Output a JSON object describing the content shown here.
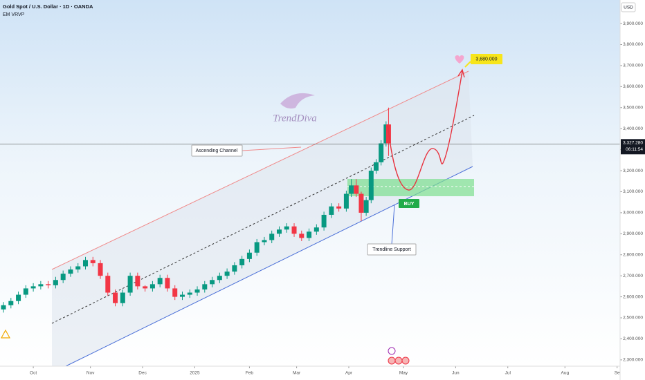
{
  "chart_data": {
    "type": "candlestick",
    "title": "Gold Spot / U.S. Dollar · 1D · OANDA",
    "indicator": "EM VRVP",
    "currency": "USD",
    "watermark": "TrendDiva",
    "x": [
      -12,
      -9,
      -6,
      -3,
      0,
      3,
      6,
      9,
      12,
      15,
      18,
      21,
      24,
      27,
      30,
      33,
      36,
      39,
      42,
      45,
      48,
      51,
      54,
      57,
      60,
      63,
      66,
      69,
      72,
      75,
      78,
      81,
      84,
      87,
      90,
      93,
      96,
      99,
      102,
      105,
      108,
      111,
      114,
      117,
      120,
      123,
      126,
      128,
      130,
      132,
      134,
      136,
      138,
      140,
      142,
      143
    ],
    "open": [
      2540,
      2560,
      2580,
      2610,
      2640,
      2650,
      2660,
      2655,
      2680,
      2710,
      2730,
      2745,
      2775,
      2760,
      2700,
      2620,
      2570,
      2620,
      2700,
      2650,
      2640,
      2660,
      2690,
      2640,
      2600,
      2610,
      2620,
      2635,
      2660,
      2680,
      2700,
      2720,
      2750,
      2780,
      2810,
      2860,
      2870,
      2900,
      2920,
      2935,
      2900,
      2880,
      2910,
      2930,
      2990,
      3030,
      3020,
      3090,
      3130,
      3090,
      3000,
      3060,
      3200,
      3240,
      3330,
      3420
    ],
    "high": [
      2575,
      2595,
      2625,
      2655,
      2665,
      2675,
      2675,
      2695,
      2725,
      2745,
      2760,
      2790,
      2790,
      2775,
      2715,
      2635,
      2635,
      2715,
      2715,
      2655,
      2675,
      2705,
      2705,
      2655,
      2625,
      2635,
      2650,
      2675,
      2695,
      2715,
      2735,
      2765,
      2795,
      2825,
      2875,
      2885,
      2915,
      2935,
      2950,
      2950,
      2915,
      2925,
      2945,
      3005,
      3045,
      3045,
      3105,
      3160,
      3160,
      3100,
      3075,
      3215,
      3255,
      3345,
      3435,
      3500
    ],
    "low": [
      2525,
      2545,
      2565,
      2595,
      2625,
      2635,
      2640,
      2640,
      2665,
      2695,
      2715,
      2730,
      2745,
      2685,
      2605,
      2555,
      2555,
      2605,
      2635,
      2625,
      2625,
      2645,
      2625,
      2585,
      2585,
      2595,
      2605,
      2620,
      2645,
      2665,
      2685,
      2705,
      2735,
      2765,
      2795,
      2845,
      2855,
      2885,
      2905,
      2885,
      2865,
      2865,
      2895,
      2915,
      2975,
      3005,
      3005,
      3075,
      3075,
      2960,
      2985,
      3045,
      3185,
      3225,
      3315,
      3270
    ],
    "close": [
      2560,
      2580,
      2610,
      2640,
      2650,
      2660,
      2655,
      2680,
      2710,
      2730,
      2745,
      2775,
      2760,
      2700,
      2620,
      2570,
      2620,
      2700,
      2650,
      2640,
      2660,
      2690,
      2640,
      2600,
      2610,
      2620,
      2635,
      2660,
      2680,
      2700,
      2720,
      2750,
      2780,
      2810,
      2860,
      2870,
      2900,
      2920,
      2935,
      2900,
      2880,
      2910,
      2930,
      2990,
      3030,
      3020,
      3090,
      3130,
      3090,
      3000,
      3060,
      3200,
      3240,
      3330,
      3420,
      3330
    ],
    "up_color": "#089981",
    "down_color": "#f23645",
    "xlim": [
      -13.4,
      236.2
    ],
    "xticks": [
      {
        "value": 0,
        "label": "Oct"
      },
      {
        "value": 23,
        "label": "Nov"
      },
      {
        "value": 44,
        "label": "Dec"
      },
      {
        "value": 65,
        "label": "2025"
      },
      {
        "value": 87,
        "label": "Feb"
      },
      {
        "value": 106,
        "label": "Mar"
      },
      {
        "value": 127,
        "label": "Apr"
      },
      {
        "value": 149,
        "label": "May"
      },
      {
        "value": 170,
        "label": "Jun"
      },
      {
        "value": 191,
        "label": "Jul"
      },
      {
        "value": 214,
        "label": "Aug"
      },
      {
        "value": 235,
        "label": "Se"
      }
    ],
    "ylim": [
      2270,
      4012
    ],
    "yticks": [
      {
        "value": 2300,
        "label": "2,300.000"
      },
      {
        "value": 2400,
        "label": "2,400.000"
      },
      {
        "value": 2500,
        "label": "2,500.000"
      },
      {
        "value": 2600,
        "label": "2,600.000"
      },
      {
        "value": 2700,
        "label": "2,700.000"
      },
      {
        "value": 2800,
        "label": "2,800.000"
      },
      {
        "value": 2900,
        "label": "2,900.000"
      },
      {
        "value": 3000,
        "label": "3,000.000"
      },
      {
        "value": 3100,
        "label": "3,100.000"
      },
      {
        "value": 3200,
        "label": "3,200.000"
      },
      {
        "value": 3300,
        "label": "3,300.000"
      },
      {
        "value": 3400,
        "label": "3,400.000"
      },
      {
        "value": 3500,
        "label": "3,500.000"
      },
      {
        "value": 3600,
        "label": "3,600.000"
      },
      {
        "value": 3700,
        "label": "3,700.000"
      },
      {
        "value": 3800,
        "label": "3,800.000"
      },
      {
        "value": 3900,
        "label": "3,900.000"
      }
    ],
    "current_price": {
      "value": 3327.28,
      "label": "3,327.280"
    },
    "countdown": "06:11:54",
    "target": {
      "value": 3680,
      "label": "3,680.000"
    },
    "annotations": {
      "channel": "Ascending Channel",
      "support": "Trendline Support",
      "signal": "BUY"
    }
  }
}
